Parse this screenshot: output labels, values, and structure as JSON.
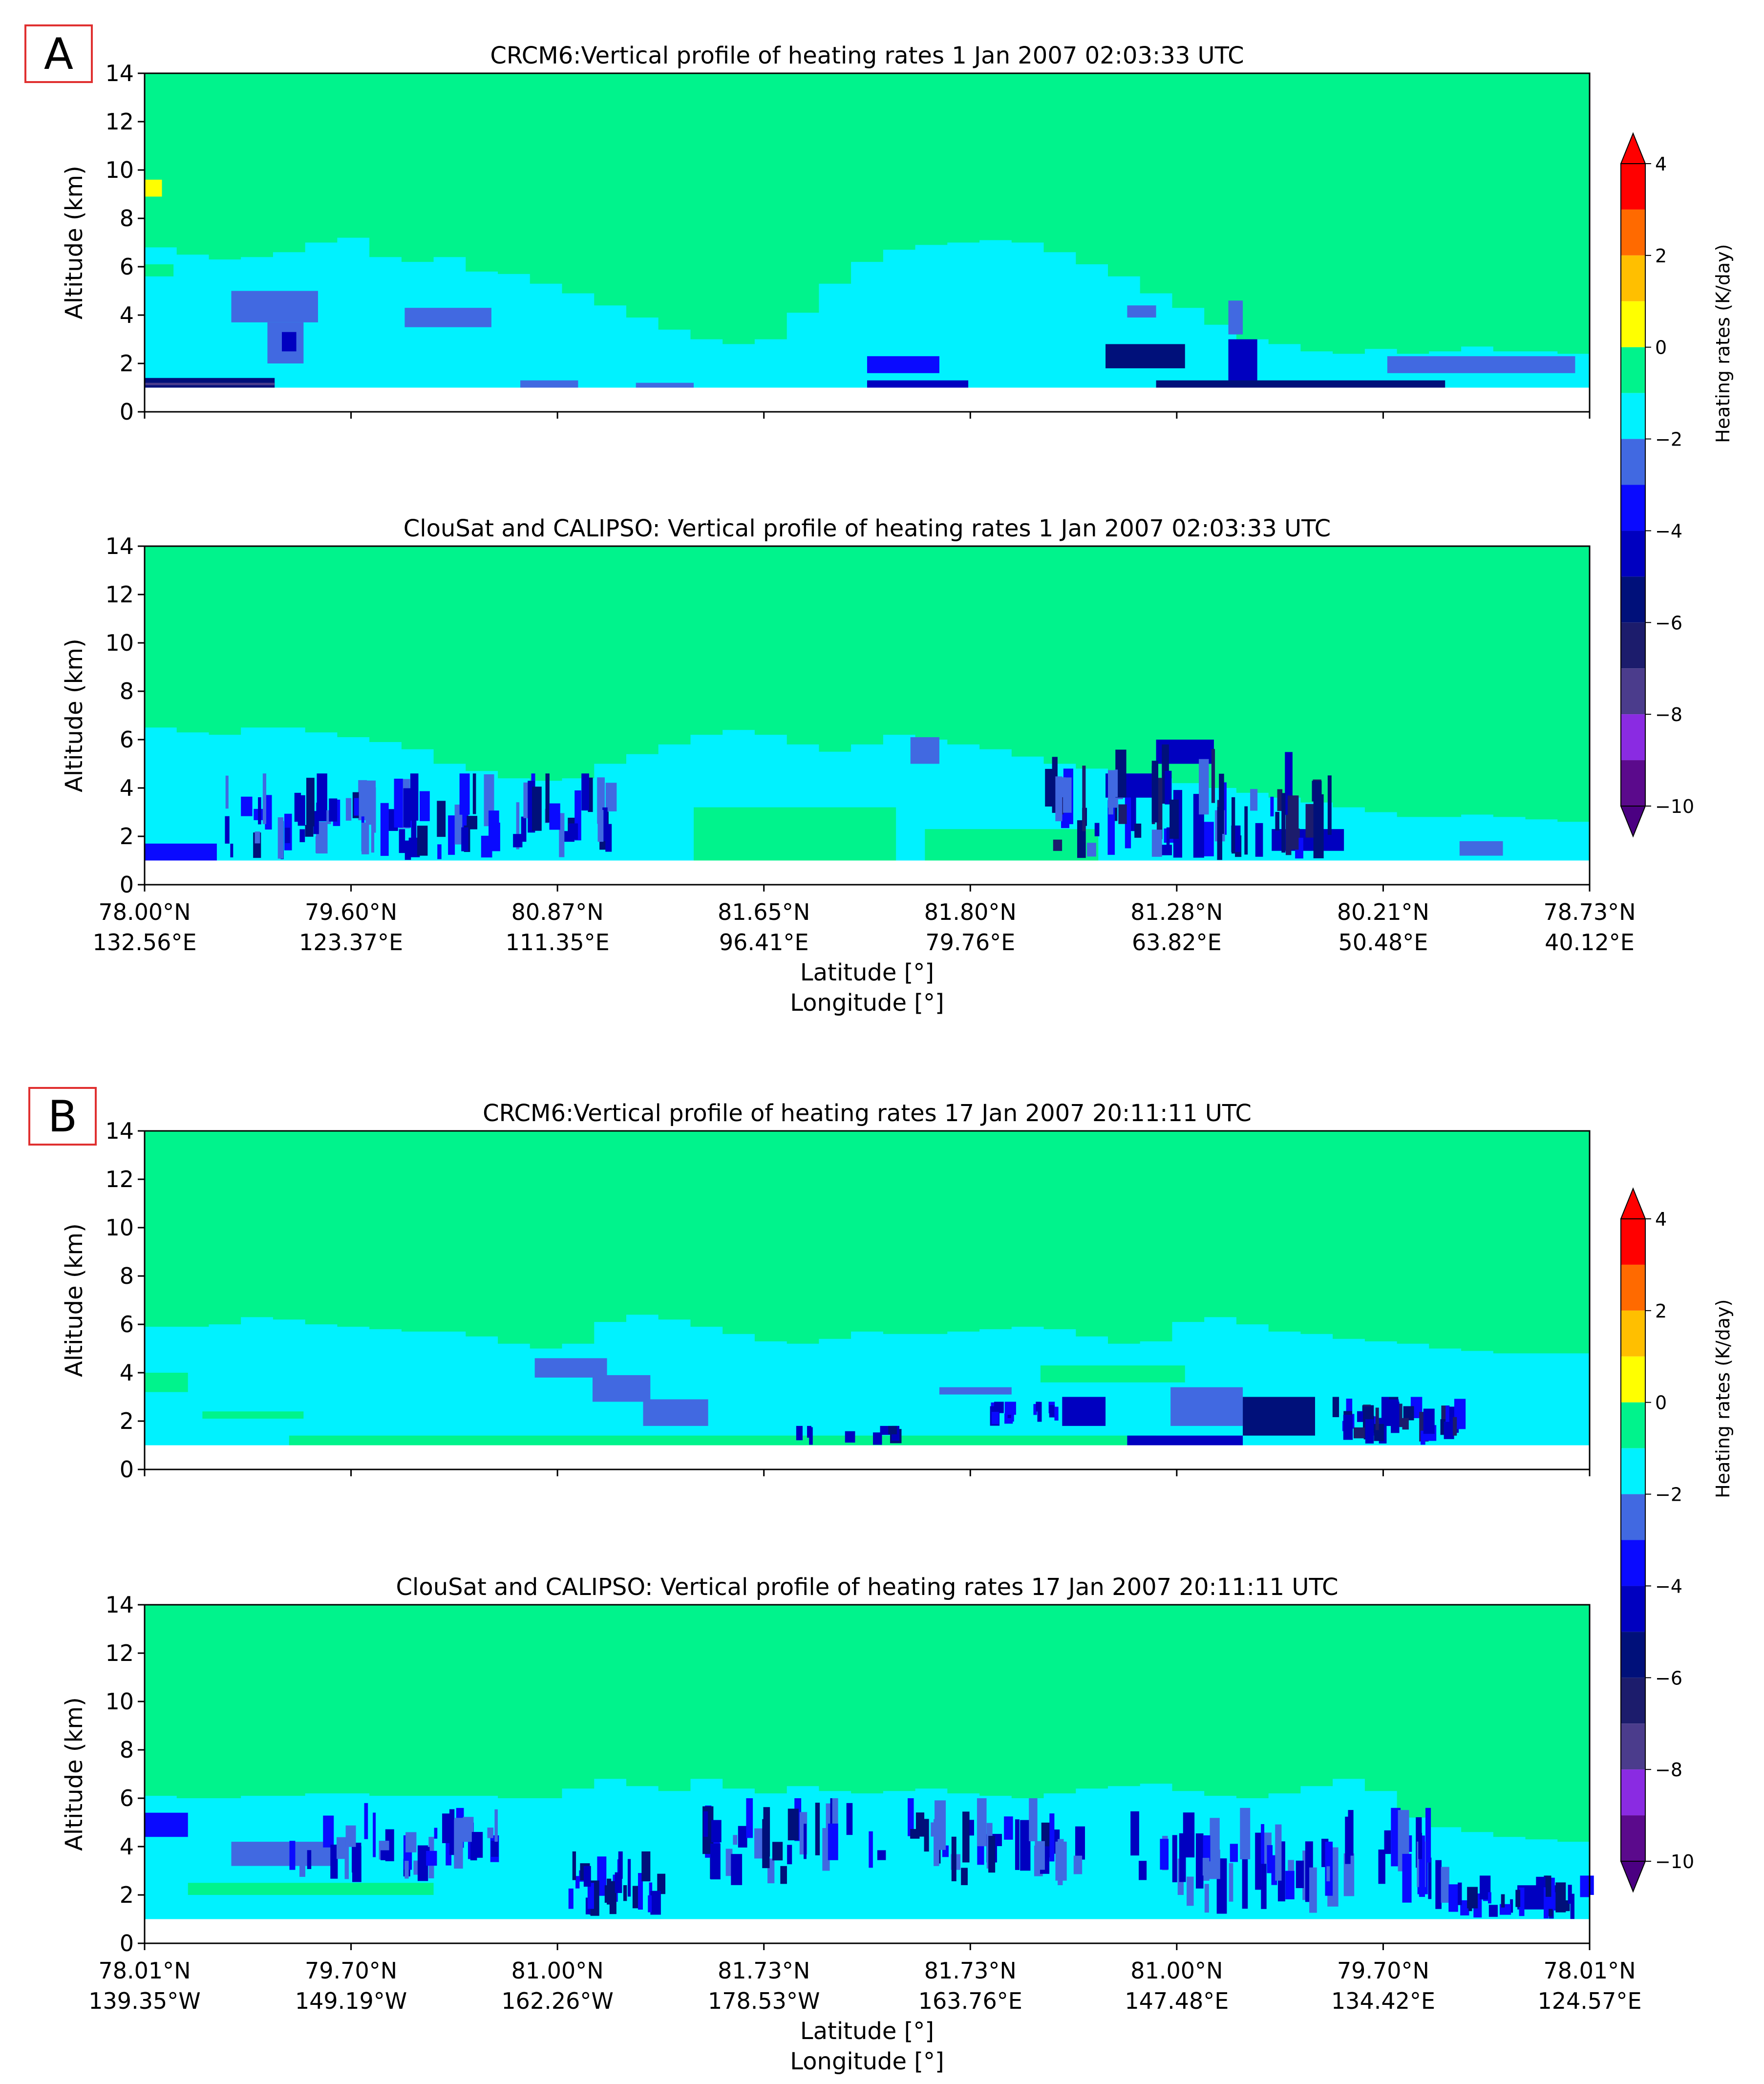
{
  "panel_labels": [
    "A",
    "B"
  ],
  "colorbar": {
    "label": "Heating rates (K/day)",
    "ticks": [
      4,
      2,
      0,
      -2,
      -4,
      -6,
      -8,
      -10
    ],
    "bins": [
      {
        "lo": 3,
        "hi": 4,
        "color": "#ff0000"
      },
      {
        "lo": 2,
        "hi": 3,
        "color": "#ff6a00"
      },
      {
        "lo": 1,
        "hi": 2,
        "color": "#ffbf00"
      },
      {
        "lo": 0,
        "hi": 1,
        "color": "#ffff00"
      },
      {
        "lo": -1,
        "hi": 0,
        "color": "#00f38c"
      },
      {
        "lo": -2,
        "hi": -1,
        "color": "#00f2ff"
      },
      {
        "lo": -3,
        "hi": -2,
        "color": "#4169e1"
      },
      {
        "lo": -4,
        "hi": -3,
        "color": "#0a0aff"
      },
      {
        "lo": -5,
        "hi": -4,
        "color": "#0000c0"
      },
      {
        "lo": -6,
        "hi": -5,
        "color": "#00107a"
      },
      {
        "lo": -7,
        "hi": -6,
        "color": "#1c1c6c"
      },
      {
        "lo": -8,
        "hi": -7,
        "color": "#4b3c8c"
      },
      {
        "lo": -9,
        "hi": -8,
        "color": "#8a2be2"
      },
      {
        "lo": -10,
        "hi": -9,
        "color": "#5b0a8c"
      }
    ],
    "over_color": "#ff0000",
    "under_color": "#4b0082"
  },
  "chart_data": [
    {
      "type": "heatmap",
      "panel": "A",
      "title": "CRCM6:Vertical profile of heating rates  1 Jan 2007 02:03:33 UTC",
      "ylabel": "Altitude (km)",
      "ylim": [
        0,
        14
      ],
      "yticks": [
        0,
        2,
        4,
        6,
        8,
        10,
        12,
        14
      ],
      "xtick_labels": [],
      "field": {
        "base_value": -0.5,
        "bottom_gap_km": 1.0,
        "layers": [
          {
            "value": -1.5,
            "top_km": [
              6.8,
              6.5,
              6.3,
              6.4,
              6.6,
              7.0,
              7.2,
              6.4,
              6.2,
              6.4,
              5.8,
              5.7,
              5.3,
              4.9,
              4.4,
              3.9,
              3.4,
              3.0,
              2.8,
              3.0,
              4.1,
              5.3,
              6.2,
              6.7,
              6.9,
              7.0,
              7.1,
              7.0,
              6.6,
              6.1,
              5.6,
              4.9,
              4.3,
              3.6,
              3.0,
              2.8,
              2.5,
              2.4,
              2.6,
              2.4,
              2.5,
              2.7,
              2.5,
              2.5,
              2.4
            ]
          }
        ],
        "patches": [
          {
            "x0": 0.0,
            "x1": 0.012,
            "y0": 8.9,
            "y1": 9.6,
            "value": 0.5
          },
          {
            "x0": 0.0,
            "x1": 0.02,
            "y0": 5.6,
            "y1": 6.1,
            "value": -0.5
          },
          {
            "x0": 0.06,
            "x1": 0.12,
            "y0": 3.7,
            "y1": 5.0,
            "value": -2.5
          },
          {
            "x0": 0.085,
            "x1": 0.11,
            "y0": 2.0,
            "y1": 3.7,
            "value": -2.5
          },
          {
            "x0": 0.095,
            "x1": 0.105,
            "y0": 2.5,
            "y1": 3.3,
            "value": -4.5
          },
          {
            "x0": 0.18,
            "x1": 0.24,
            "y0": 3.5,
            "y1": 4.3,
            "value": -2.5
          },
          {
            "x0": 0.0,
            "x1": 0.09,
            "y0": 1.0,
            "y1": 1.4,
            "value": -5.5
          },
          {
            "x0": 0.0,
            "x1": 0.09,
            "y0": 1.1,
            "y1": 1.2,
            "value": -7.5
          },
          {
            "x0": 0.26,
            "x1": 0.3,
            "y0": 1.0,
            "y1": 1.3,
            "value": -2.5
          },
          {
            "x0": 0.34,
            "x1": 0.38,
            "y0": 1.0,
            "y1": 1.2,
            "value": -2.5
          },
          {
            "x0": 0.5,
            "x1": 0.55,
            "y0": 1.6,
            "y1": 2.3,
            "value": -3.5
          },
          {
            "x0": 0.5,
            "x1": 0.57,
            "y0": 1.0,
            "y1": 1.3,
            "value": -4.5
          },
          {
            "x0": 0.665,
            "x1": 0.72,
            "y0": 1.8,
            "y1": 2.8,
            "value": -5.5
          },
          {
            "x0": 0.68,
            "x1": 0.7,
            "y0": 3.9,
            "y1": 4.4,
            "value": -2.5
          },
          {
            "x0": 0.75,
            "x1": 0.77,
            "y0": 1.2,
            "y1": 3.0,
            "value": -4.5
          },
          {
            "x0": 0.75,
            "x1": 0.76,
            "y0": 3.2,
            "y1": 4.6,
            "value": -2.5
          },
          {
            "x0": 0.7,
            "x1": 0.9,
            "y0": 1.0,
            "y1": 1.3,
            "value": -5.5
          },
          {
            "x0": 0.86,
            "x1": 0.99,
            "y0": 1.6,
            "y1": 2.3,
            "value": -2.5
          },
          {
            "x0": 0.99,
            "x1": 1.0,
            "y0": 5.0,
            "y1": 6.1,
            "value": -0.5
          }
        ],
        "streaks": []
      }
    },
    {
      "type": "heatmap",
      "panel": "A",
      "title": "ClouSat and CALIPSO: Vertical profile of heating rates  1 Jan 2007 02:03:33 UTC",
      "ylabel": "Altitude (km)",
      "xlabel": "Latitude [°]",
      "xlabel2": "Longitude [°]",
      "ylim": [
        0,
        14
      ],
      "yticks": [
        0,
        2,
        4,
        6,
        8,
        10,
        12,
        14
      ],
      "xtick_labels": [
        [
          "78.00°N",
          "132.56°E"
        ],
        [
          "79.60°N",
          "123.37°E"
        ],
        [
          "80.87°N",
          "111.35°E"
        ],
        [
          "81.65°N",
          "96.41°E"
        ],
        [
          "81.80°N",
          "79.76°E"
        ],
        [
          "81.28°N",
          "63.82°E"
        ],
        [
          "80.21°N",
          "50.48°E"
        ],
        [
          "78.73°N",
          "40.12°E"
        ]
      ],
      "field": {
        "base_value": -0.5,
        "bottom_gap_km": 1.0,
        "layers": [
          {
            "value": -1.5,
            "top_km": [
              6.5,
              6.3,
              6.2,
              6.5,
              6.5,
              6.3,
              6.1,
              5.9,
              5.6,
              5.0,
              4.7,
              4.4,
              4.3,
              4.4,
              5.0,
              5.4,
              5.8,
              6.2,
              6.4,
              6.2,
              5.8,
              5.5,
              5.8,
              6.2,
              6.0,
              5.8,
              5.6,
              5.3,
              5.0,
              4.8,
              4.6,
              4.4,
              4.2,
              4.0,
              3.8,
              3.6,
              3.4,
              3.2,
              3.0,
              2.8,
              2.8,
              2.9,
              2.8,
              2.7,
              2.6
            ]
          }
        ],
        "patches": [
          {
            "x0": 0.38,
            "x1": 0.52,
            "y0": 1.0,
            "y1": 3.2,
            "value": -0.5
          },
          {
            "x0": 0.54,
            "x1": 0.66,
            "y0": 1.0,
            "y1": 2.3,
            "value": -0.5
          },
          {
            "x0": 0.53,
            "x1": 0.55,
            "y0": 5.0,
            "y1": 6.1,
            "value": -2.5
          },
          {
            "x0": 0.665,
            "x1": 0.7,
            "y0": 3.6,
            "y1": 4.6,
            "value": -4.5
          },
          {
            "x0": 0.7,
            "x1": 0.74,
            "y0": 5.0,
            "y1": 6.0,
            "value": -4.5
          },
          {
            "x0": 0.78,
            "x1": 0.83,
            "y0": 1.4,
            "y1": 2.3,
            "value": -4.5
          },
          {
            "x0": 0.91,
            "x1": 0.94,
            "y0": 1.2,
            "y1": 1.8,
            "value": -2.5
          },
          {
            "x0": 0.0,
            "x1": 0.05,
            "y0": 1.0,
            "y1": 1.7,
            "value": -3.5
          }
        ],
        "streaks": [
          {
            "x0": 0.04,
            "x1": 0.32,
            "y0": 1.0,
            "y1": 4.6,
            "n": 90,
            "values": [
              -2.5,
              -3.5,
              -4.5,
              -5.5
            ],
            "seed": 11
          },
          {
            "x0": 0.62,
            "x1": 0.82,
            "y0": 1.0,
            "y1": 5.8,
            "n": 70,
            "values": [
              -2.5,
              -3.5,
              -4.5,
              -5.5,
              -6.5
            ],
            "seed": 23
          }
        ]
      }
    },
    {
      "type": "heatmap",
      "panel": "B",
      "title": "CRCM6:Vertical profile of heating rates 17 Jan 2007 20:11:11 UTC",
      "ylabel": "Altitude (km)",
      "ylim": [
        0,
        14
      ],
      "yticks": [
        0,
        2,
        4,
        6,
        8,
        10,
        12,
        14
      ],
      "xtick_labels": [],
      "field": {
        "base_value": -0.5,
        "bottom_gap_km": 1.0,
        "layers": [
          {
            "value": -1.5,
            "top_km": [
              5.9,
              5.9,
              6.0,
              6.3,
              6.2,
              6.0,
              5.9,
              5.8,
              5.7,
              5.7,
              5.5,
              5.2,
              5.0,
              5.2,
              6.1,
              6.4,
              6.2,
              5.9,
              5.6,
              5.3,
              5.2,
              5.4,
              5.7,
              5.6,
              5.6,
              5.7,
              5.8,
              5.9,
              5.8,
              5.5,
              5.2,
              5.3,
              6.1,
              6.3,
              6.0,
              5.7,
              5.6,
              5.4,
              5.3,
              5.2,
              5.0,
              4.9,
              4.8,
              4.8,
              4.8
            ]
          }
        ],
        "patches": [
          {
            "x0": 0.0,
            "x1": 0.03,
            "y0": 3.2,
            "y1": 4.0,
            "value": -0.5
          },
          {
            "x0": 0.04,
            "x1": 0.11,
            "y0": 2.1,
            "y1": 2.4,
            "value": -0.5
          },
          {
            "x0": 0.1,
            "x1": 0.7,
            "y0": 1.0,
            "y1": 1.4,
            "value": -0.5
          },
          {
            "x0": 0.27,
            "x1": 0.32,
            "y0": 3.8,
            "y1": 4.6,
            "value": -2.5
          },
          {
            "x0": 0.31,
            "x1": 0.35,
            "y0": 2.8,
            "y1": 3.9,
            "value": -2.5
          },
          {
            "x0": 0.345,
            "x1": 0.39,
            "y0": 1.8,
            "y1": 2.9,
            "value": -2.5
          },
          {
            "x0": 0.55,
            "x1": 0.6,
            "y0": 3.1,
            "y1": 3.4,
            "value": -2.5
          },
          {
            "x0": 0.635,
            "x1": 0.665,
            "y0": 1.8,
            "y1": 3.0,
            "value": -4.5
          },
          {
            "x0": 0.71,
            "x1": 0.76,
            "y0": 1.8,
            "y1": 3.4,
            "value": -2.5
          },
          {
            "x0": 0.68,
            "x1": 0.76,
            "y0": 1.0,
            "y1": 1.4,
            "value": -4.5
          },
          {
            "x0": 0.76,
            "x1": 0.81,
            "y0": 1.4,
            "y1": 3.0,
            "value": -5.5
          },
          {
            "x0": 0.62,
            "x1": 0.72,
            "y0": 3.6,
            "y1": 4.3,
            "value": -0.5
          }
        ],
        "streaks": [
          {
            "x0": 0.44,
            "x1": 0.52,
            "y0": 1.0,
            "y1": 1.8,
            "n": 10,
            "values": [
              -4.5,
              -5.5
            ],
            "seed": 31
          },
          {
            "x0": 0.58,
            "x1": 0.64,
            "y0": 1.8,
            "y1": 2.8,
            "n": 14,
            "values": [
              -3.5,
              -4.5
            ],
            "seed": 37
          },
          {
            "x0": 0.82,
            "x1": 0.91,
            "y0": 1.0,
            "y1": 3.0,
            "n": 40,
            "values": [
              -3.5,
              -4.5,
              -5.5,
              -6.5
            ],
            "seed": 41
          }
        ]
      }
    },
    {
      "type": "heatmap",
      "panel": "B",
      "title": "ClouSat and CALIPSO: Vertical profile of heating rates 17 Jan 2007 20:11:11 UTC",
      "ylabel": "Altitude (km)",
      "xlabel": "Latitude [°]",
      "xlabel2": "Longitude [°]",
      "ylim": [
        0,
        14
      ],
      "yticks": [
        0,
        2,
        4,
        6,
        8,
        10,
        12,
        14
      ],
      "xtick_labels": [
        [
          "78.01°N",
          "139.35°W"
        ],
        [
          "79.70°N",
          "149.19°W"
        ],
        [
          "81.00°N",
          "162.26°W"
        ],
        [
          "81.73°N",
          "178.53°W"
        ],
        [
          "81.73°N",
          "163.76°E"
        ],
        [
          "81.00°N",
          "147.48°E"
        ],
        [
          "79.70°N",
          "134.42°E"
        ],
        [
          "78.01°N",
          "124.57°E"
        ]
      ],
      "field": {
        "base_value": -0.5,
        "bottom_gap_km": 1.0,
        "layers": [
          {
            "value": -1.5,
            "top_km": [
              6.1,
              6.0,
              6.0,
              6.1,
              6.1,
              6.2,
              6.2,
              6.1,
              6.1,
              6.1,
              6.1,
              6.0,
              6.0,
              6.4,
              6.8,
              6.5,
              6.3,
              6.8,
              6.4,
              6.2,
              6.5,
              6.3,
              6.2,
              6.3,
              6.4,
              6.2,
              6.1,
              6.0,
              6.2,
              6.4,
              6.5,
              6.6,
              6.3,
              6.1,
              6.0,
              6.2,
              6.5,
              6.8,
              6.3,
              5.2,
              4.8,
              4.6,
              4.4,
              4.3,
              4.2
            ]
          }
        ],
        "patches": [
          {
            "x0": 0.0,
            "x1": 0.03,
            "y0": 4.4,
            "y1": 5.4,
            "value": -3.5
          },
          {
            "x0": 0.06,
            "x1": 0.13,
            "y0": 3.2,
            "y1": 4.2,
            "value": -2.5
          },
          {
            "x0": 0.03,
            "x1": 0.2,
            "y0": 2.0,
            "y1": 2.5,
            "value": -0.5
          },
          {
            "x0": 0.95,
            "x1": 0.98,
            "y0": 1.4,
            "y1": 2.4,
            "value": -4.5
          }
        ],
        "streaks": [
          {
            "x0": 0.08,
            "x1": 0.25,
            "y0": 2.5,
            "y1": 5.8,
            "n": 40,
            "values": [
              -2.5,
              -3.5,
              -4.5
            ],
            "seed": 51
          },
          {
            "x0": 0.29,
            "x1": 0.36,
            "y0": 1.0,
            "y1": 3.8,
            "n": 28,
            "values": [
              -3.5,
              -4.5,
              -5.5
            ],
            "seed": 53
          },
          {
            "x0": 0.38,
            "x1": 0.65,
            "y0": 2.4,
            "y1": 6.0,
            "n": 70,
            "values": [
              -2.5,
              -3.5,
              -4.5,
              -5.5
            ],
            "seed": 57
          },
          {
            "x0": 0.68,
            "x1": 0.9,
            "y0": 1.2,
            "y1": 5.6,
            "n": 60,
            "values": [
              -2.5,
              -3.5,
              -4.5
            ],
            "seed": 61
          },
          {
            "x0": 0.9,
            "x1": 1.0,
            "y0": 1.0,
            "y1": 2.8,
            "n": 30,
            "values": [
              -3.5,
              -4.5,
              -5.5
            ],
            "seed": 67
          }
        ]
      }
    }
  ]
}
